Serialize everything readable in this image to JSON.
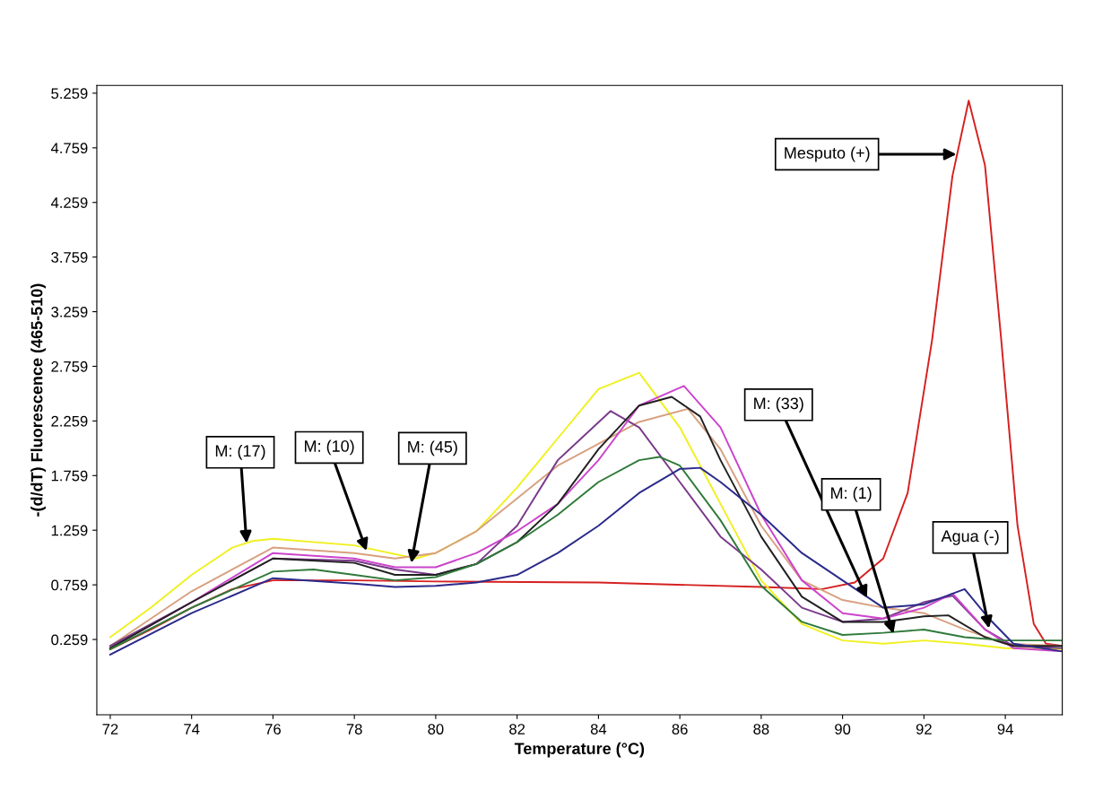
{
  "chart_data": {
    "type": "line",
    "xlabel": "Temperature (°C)",
    "ylabel": "-(d/dT) Fluorescence (465-510)",
    "xlim": [
      71.67,
      95.4
    ],
    "ylim": [
      -0.43,
      5.33
    ],
    "xticks": [
      72,
      74,
      76,
      78,
      80,
      82,
      84,
      86,
      88,
      90,
      92,
      94
    ],
    "yticks": [
      0.259,
      0.759,
      1.259,
      1.759,
      2.259,
      2.759,
      3.259,
      3.759,
      4.259,
      4.759,
      5.259
    ],
    "grid": false,
    "marker": "none",
    "line_style": "solid",
    "series": [
      {
        "color": "#d62020",
        "x": [
          72,
          73,
          74,
          75,
          76,
          78,
          80,
          84,
          88,
          89.5,
          90.3,
          91,
          91.6,
          92.2,
          92.7,
          93.1,
          93.5,
          93.9,
          94.3,
          94.7,
          95.0,
          95.4
        ],
        "values": [
          0.17,
          0.35,
          0.55,
          0.72,
          0.8,
          0.8,
          0.79,
          0.78,
          0.74,
          0.72,
          0.78,
          1.0,
          1.6,
          3.0,
          4.5,
          5.19,
          4.6,
          3.0,
          1.3,
          0.4,
          0.22,
          0.2
        ]
      },
      {
        "color": "#f0f020",
        "x": [
          72,
          73,
          74,
          75,
          75.5,
          76,
          78,
          79.5,
          80,
          81,
          82,
          83,
          84,
          85,
          86,
          87,
          88,
          89,
          90,
          91,
          92,
          93,
          94,
          95.4
        ],
        "values": [
          0.28,
          0.55,
          0.85,
          1.1,
          1.16,
          1.18,
          1.12,
          1.0,
          1.05,
          1.25,
          1.65,
          2.1,
          2.55,
          2.7,
          2.2,
          1.5,
          0.8,
          0.4,
          0.25,
          0.22,
          0.25,
          0.22,
          0.18,
          0.17
        ]
      },
      {
        "color": "#d8a080",
        "x": [
          72,
          74,
          76,
          78,
          79,
          80,
          81,
          82,
          83,
          84,
          85,
          86.2,
          87,
          88,
          89,
          90,
          91,
          92,
          93,
          94,
          95.4
        ],
        "values": [
          0.2,
          0.7,
          1.1,
          1.05,
          1.0,
          1.05,
          1.25,
          1.55,
          1.85,
          2.05,
          2.25,
          2.37,
          2.0,
          1.3,
          0.8,
          0.62,
          0.55,
          0.5,
          0.35,
          0.22,
          0.2
        ]
      },
      {
        "color": "#7a3a8a",
        "x": [
          72,
          74,
          76,
          78,
          79,
          80,
          81,
          82,
          83,
          84.3,
          85,
          86,
          87,
          88,
          89,
          90,
          91,
          92,
          92.7,
          93.5,
          94.2,
          95.4
        ],
        "values": [
          0.2,
          0.6,
          1.0,
          0.98,
          0.9,
          0.85,
          0.95,
          1.3,
          1.9,
          2.35,
          2.2,
          1.7,
          1.2,
          0.9,
          0.55,
          0.42,
          0.45,
          0.6,
          0.66,
          0.35,
          0.2,
          0.18
        ]
      },
      {
        "color": "#cc44cc",
        "x": [
          72,
          74,
          76,
          78,
          79,
          80,
          81,
          82,
          83,
          84,
          85,
          86.1,
          87,
          88,
          89,
          90,
          91,
          92,
          92.7,
          93.5,
          94.2,
          95.4
        ],
        "values": [
          0.18,
          0.6,
          1.05,
          1.0,
          0.92,
          0.92,
          1.05,
          1.25,
          1.5,
          1.9,
          2.4,
          2.58,
          2.2,
          1.4,
          0.8,
          0.5,
          0.45,
          0.55,
          0.68,
          0.35,
          0.18,
          0.15
        ]
      },
      {
        "color": "#202020",
        "x": [
          72,
          74,
          76,
          78,
          79,
          80,
          81,
          82,
          83,
          84,
          85,
          85.8,
          86.5,
          87,
          88,
          89,
          90,
          91,
          92,
          92.6,
          93.5,
          94.2,
          95.4
        ],
        "values": [
          0.18,
          0.6,
          1.0,
          0.96,
          0.85,
          0.85,
          0.95,
          1.15,
          1.5,
          2.0,
          2.4,
          2.48,
          2.3,
          1.9,
          1.2,
          0.65,
          0.42,
          0.42,
          0.47,
          0.48,
          0.28,
          0.2,
          0.2
        ]
      },
      {
        "color": "#2f7a3a",
        "x": [
          72,
          74,
          76,
          77,
          78,
          79,
          80,
          81,
          82,
          83,
          84,
          85,
          85.5,
          86,
          87,
          88,
          89,
          90,
          91,
          92,
          93,
          94,
          95.4
        ],
        "values": [
          0.17,
          0.55,
          0.88,
          0.9,
          0.85,
          0.8,
          0.83,
          0.95,
          1.15,
          1.4,
          1.7,
          1.9,
          1.93,
          1.85,
          1.35,
          0.75,
          0.42,
          0.3,
          0.32,
          0.35,
          0.28,
          0.25,
          0.25
        ]
      },
      {
        "color": "#2a2a8a",
        "x": [
          72,
          74,
          76,
          78,
          79,
          80,
          81,
          82,
          83,
          84,
          85,
          86,
          86.5,
          87,
          88,
          89,
          90,
          91,
          92,
          93,
          93.6,
          94.2,
          95.4
        ],
        "values": [
          0.12,
          0.5,
          0.82,
          0.77,
          0.74,
          0.75,
          0.78,
          0.85,
          1.05,
          1.3,
          1.6,
          1.82,
          1.83,
          1.7,
          1.4,
          1.05,
          0.8,
          0.55,
          0.58,
          0.72,
          0.45,
          0.22,
          0.15
        ]
      }
    ],
    "annotations": [
      {
        "text": "M: (17)",
        "x": 75.35,
        "y": 1.14
      },
      {
        "text": "M: (10)",
        "x": 78.3,
        "y": 1.07
      },
      {
        "text": "M: (45)",
        "x": 79.4,
        "y": 0.96
      },
      {
        "text": "M: (33)",
        "x": 90.6,
        "y": 0.64
      },
      {
        "text": "M: (1)",
        "x": 91.25,
        "y": 0.31
      },
      {
        "text": "Agua (-)",
        "x": 93.6,
        "y": 0.36
      },
      {
        "text": "Mesputo (+)",
        "x": 92.8,
        "y": 4.7
      }
    ]
  }
}
